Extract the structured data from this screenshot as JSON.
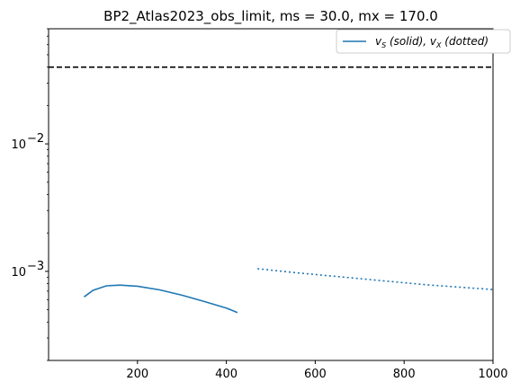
{
  "chart_data": {
    "type": "line",
    "title": "BP2_Atlas2023_obs_limit, ms = 30.0, mx = 170.0",
    "xlabel": "",
    "ylabel": "",
    "xlim": [
      0,
      1000
    ],
    "ylim": [
      0.0002,
      0.08
    ],
    "yscale": "log",
    "x_ticks": [
      200,
      400,
      600,
      800,
      1000
    ],
    "x_tick_labels": [
      "200",
      "400",
      "600",
      "800",
      "1000"
    ],
    "y_major_ticks": [
      0.001,
      0.01
    ],
    "y_tick_labels": [
      {
        "base": "10",
        "exp": "−3"
      },
      {
        "base": "10",
        "exp": "−2"
      }
    ],
    "legend_location": "top-right",
    "series": [
      {
        "name": "v_S (solid), v_X (dotted)",
        "legend_parts": [
          {
            "sym": "v",
            "sub": "S",
            "text": " (solid), "
          },
          {
            "sym": "v",
            "sub": "X",
            "text": " (dotted)"
          }
        ],
        "style": "solid",
        "color": "#1f77b4",
        "x": [
          80,
          100,
          130,
          160,
          200,
          250,
          300,
          350,
          400,
          425
        ],
        "y": [
          0.00063,
          0.00071,
          0.00077,
          0.00078,
          0.000765,
          0.000715,
          0.00065,
          0.00058,
          0.000515,
          0.000475
        ]
      },
      {
        "style": "dotted",
        "color": "#1f77b4",
        "x": [
          470,
          550,
          650,
          750,
          850,
          950,
          1000
        ],
        "y": [
          0.00105,
          0.00098,
          0.00091,
          0.000845,
          0.000785,
          0.00074,
          0.00072
        ]
      }
    ],
    "reference_line": {
      "y": 0.04,
      "style": "dashed",
      "color": "#000000"
    },
    "grid": false
  }
}
